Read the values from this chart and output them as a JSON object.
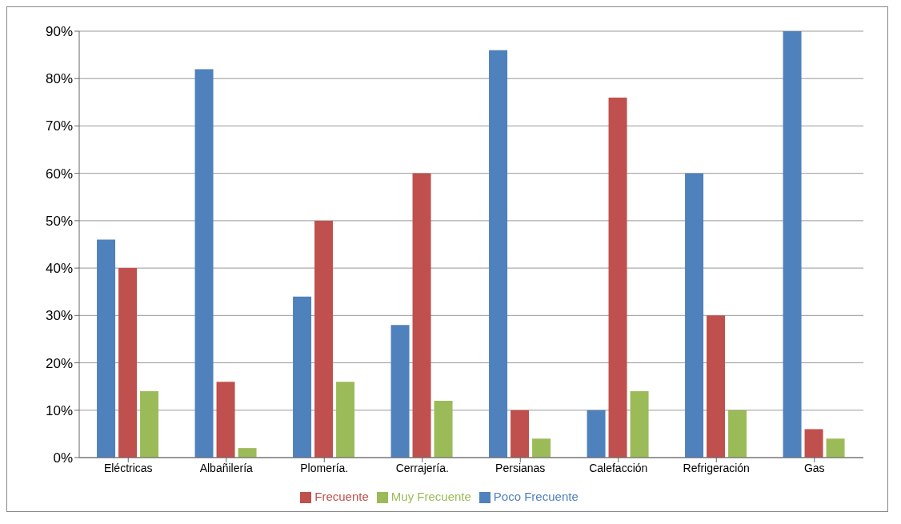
{
  "chart_data": {
    "type": "bar",
    "categories": [
      "Eléctricas",
      "Albañilería",
      "Plomería.",
      "Cerrajería.",
      "Persianas",
      "Calefacción",
      "Refrigeración",
      "Gas"
    ],
    "series": [
      {
        "name": "Poco Frecuente",
        "color": "#4f81bd",
        "values": [
          46,
          82,
          34,
          28,
          86,
          10,
          60,
          90
        ]
      },
      {
        "name": "Frecuente",
        "color": "#c0504d",
        "values": [
          40,
          16,
          50,
          60,
          10,
          76,
          30,
          6
        ]
      },
      {
        "name": "Muy Frecuente",
        "color": "#9bbb59",
        "values": [
          14,
          2,
          16,
          12,
          4,
          14,
          10,
          4
        ]
      }
    ],
    "ylim": [
      0,
      90
    ],
    "yticks": [
      {
        "value": 0,
        "label": "0%"
      },
      {
        "value": 10,
        "label": "10%"
      },
      {
        "value": 20,
        "label": "20%"
      },
      {
        "value": 30,
        "label": "30%"
      },
      {
        "value": 40,
        "label": "40%"
      },
      {
        "value": 50,
        "label": "50%"
      },
      {
        "value": 60,
        "label": "60%"
      },
      {
        "value": 70,
        "label": "70%"
      },
      {
        "value": 80,
        "label": "80%"
      },
      {
        "value": 90,
        "label": "90%"
      }
    ],
    "grid": "y",
    "legend": "bottom"
  }
}
